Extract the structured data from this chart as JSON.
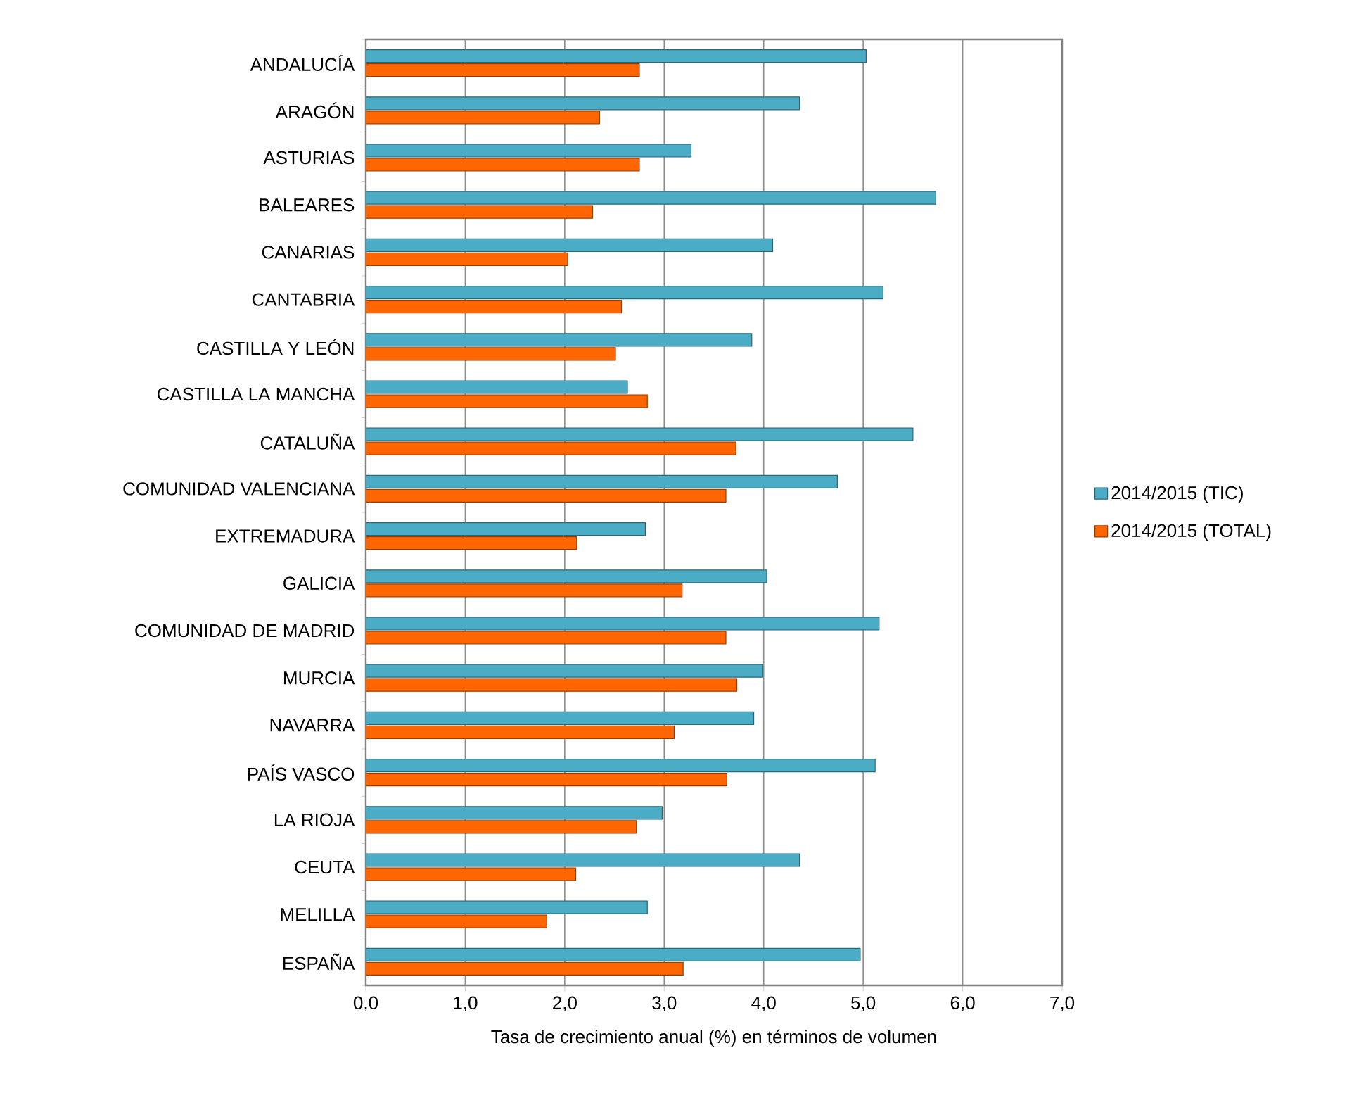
{
  "chart_data": {
    "type": "bar",
    "orientation": "horizontal",
    "xlabel": "Tasa de crecimiento anual (%) en términos de volumen",
    "categories": [
      "ANDALUCÍA",
      "ARAGÓN",
      "ASTURIAS",
      "BALEARES",
      "CANARIAS",
      "CANTABRIA",
      "CASTILLA Y LEÓN",
      "CASTILLA LA MANCHA",
      "CATALUÑA",
      "COMUNIDAD VALENCIANA",
      "EXTREMADURA",
      "GALICIA",
      "COMUNIDAD DE MADRID",
      "MURCIA",
      "NAVARRA",
      "PAÍS VASCO",
      "LA RIOJA",
      "CEUTA",
      "MELILLA",
      "ESPAÑA"
    ],
    "series": [
      {
        "name": "2014/2015 (TIC)",
        "color": "#4bacc6",
        "values": [
          5.03,
          4.36,
          3.27,
          5.73,
          4.09,
          5.2,
          3.88,
          2.63,
          5.5,
          4.74,
          2.81,
          4.03,
          5.16,
          3.99,
          3.9,
          5.12,
          2.98,
          4.36,
          2.83,
          4.97
        ]
      },
      {
        "name": "2014/2015 (TOTAL)",
        "color": "#ff6600",
        "values": [
          2.75,
          2.35,
          2.75,
          2.28,
          2.03,
          2.57,
          2.51,
          2.83,
          3.72,
          3.62,
          2.12,
          3.18,
          3.62,
          3.73,
          3.1,
          3.63,
          2.72,
          2.11,
          1.82,
          3.19
        ]
      }
    ],
    "xlim": [
      0,
      7
    ],
    "xticks": [
      {
        "value": 0,
        "label": "0,0"
      },
      {
        "value": 1,
        "label": "1,0"
      },
      {
        "value": 2,
        "label": "2,0"
      },
      {
        "value": 3,
        "label": "3,0"
      },
      {
        "value": 4,
        "label": "4,0"
      },
      {
        "value": 5,
        "label": "5,0"
      },
      {
        "value": 6,
        "label": "6,0"
      },
      {
        "value": 7,
        "label": "7,0"
      }
    ],
    "grid": "x",
    "legend": "right"
  }
}
